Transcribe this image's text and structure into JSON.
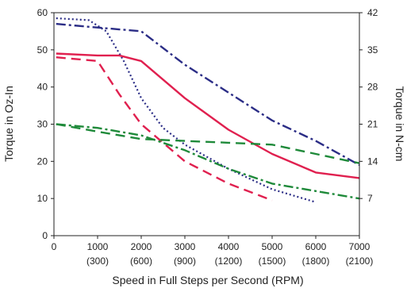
{
  "chart_data": {
    "type": "line",
    "xlabel": "Speed in Full Steps per Second (RPM)",
    "ylabel": "Torque in Oz-In",
    "y2label": "Torque in N-cm",
    "xlim": [
      0,
      7000
    ],
    "ylim": [
      0,
      60
    ],
    "y2lim": [
      0,
      42
    ],
    "x_ticks": [
      0,
      1000,
      2000,
      3000,
      4000,
      5000,
      6000,
      7000
    ],
    "x_tick_labels": [
      "0",
      "1000",
      "2000",
      "3000",
      "4000",
      "5000",
      "6000",
      "7000"
    ],
    "x_tick_sublabels": [
      "",
      "(300)",
      "(600)",
      "(900)",
      "(1200)",
      "(1500)",
      "(1800)",
      "(2100)"
    ],
    "y_ticks": [
      0,
      10,
      20,
      30,
      40,
      50,
      60
    ],
    "y2_ticks": [
      7,
      14,
      21,
      28,
      35,
      42
    ],
    "grid": false,
    "series": [
      {
        "color": "#2b2d86",
        "style": "dashdot",
        "x": [
          50,
          1000,
          2000,
          3000,
          4000,
          5000,
          6000,
          7000
        ],
        "y": [
          57,
          56,
          55,
          46,
          38.5,
          31,
          25.5,
          19
        ]
      },
      {
        "color": "#2b2d86",
        "style": "dotted",
        "x": [
          50,
          800,
          1200,
          1600,
          2000,
          2500,
          3000,
          4000,
          5000,
          6000
        ],
        "y": [
          58.5,
          58,
          55,
          47,
          37,
          29,
          24.5,
          18,
          12.5,
          9
        ]
      },
      {
        "color": "#e0204f",
        "style": "solid",
        "x": [
          50,
          1000,
          1500,
          2000,
          3000,
          4000,
          5000,
          6000,
          7000
        ],
        "y": [
          49,
          48.5,
          48.5,
          47,
          37,
          28.5,
          22,
          17,
          15.5
        ]
      },
      {
        "color": "#e0204f",
        "style": "dashed",
        "x": [
          50,
          1000,
          1500,
          2000,
          3000,
          4000,
          5000
        ],
        "y": [
          48,
          47,
          38,
          30,
          20,
          14,
          9.5
        ]
      },
      {
        "color": "#1f8a3a",
        "style": "dashed",
        "x": [
          50,
          1000,
          2000,
          3000,
          4000,
          5000,
          6000,
          7000
        ],
        "y": [
          30,
          28,
          26,
          25.5,
          25,
          24.5,
          22,
          19.5
        ]
      },
      {
        "color": "#1f8a3a",
        "style": "dashdot",
        "x": [
          50,
          1000,
          2000,
          3000,
          4000,
          5000,
          6000,
          7000
        ],
        "y": [
          30,
          29,
          27,
          23,
          18,
          14,
          12,
          10
        ]
      }
    ]
  }
}
